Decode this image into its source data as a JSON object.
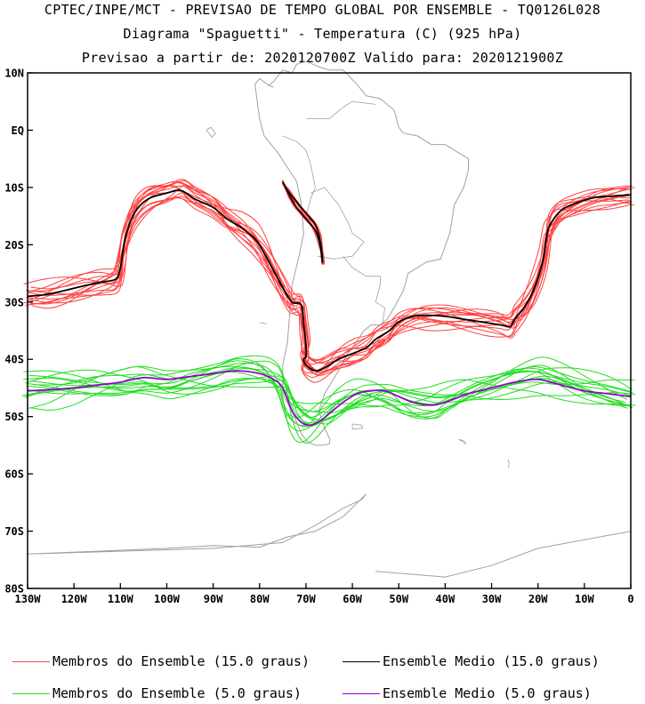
{
  "titles": {
    "line1": "CPTEC/INPE/MCT - PREVISAO DE TEMPO GLOBAL POR ENSEMBLE - TQ0126L028",
    "line2": "Diagrama \"Spaguetti\" - Temperatura (C) (925 hPa)",
    "line3": "Previsao a partir de: 2020120700Z  Valido para: 2020121900Z"
  },
  "colors": {
    "members_15": "#ff4040",
    "mean_15": "#000000",
    "members_5": "#22dd22",
    "mean_5": "#9900cc",
    "coast": "#a0a0a0"
  },
  "legend": [
    {
      "label": "Membros do Ensemble (15.0 graus)",
      "color": "#ff4040"
    },
    {
      "label": "Ensemble Medio (15.0 graus)",
      "color": "#000000"
    },
    {
      "label": "Membros do Ensemble (5.0 graus)",
      "color": "#22dd22"
    },
    {
      "label": "Ensemble Medio (5.0 graus)",
      "color": "#9900cc"
    }
  ],
  "chart_data": {
    "type": "line",
    "map_projection": "latitude-longitude",
    "xlim": [
      -130,
      0
    ],
    "ylim": [
      -80,
      10
    ],
    "x_ticks": [
      {
        "value": -130,
        "label": "130W"
      },
      {
        "value": -120,
        "label": "120W"
      },
      {
        "value": -110,
        "label": "110W"
      },
      {
        "value": -100,
        "label": "100W"
      },
      {
        "value": -90,
        "label": "90W"
      },
      {
        "value": -80,
        "label": "80W"
      },
      {
        "value": -70,
        "label": "70W"
      },
      {
        "value": -60,
        "label": "60W"
      },
      {
        "value": -50,
        "label": "50W"
      },
      {
        "value": -40,
        "label": "40W"
      },
      {
        "value": -30,
        "label": "30W"
      },
      {
        "value": -20,
        "label": "20W"
      },
      {
        "value": -10,
        "label": "10W"
      },
      {
        "value": 0,
        "label": "0"
      }
    ],
    "y_ticks": [
      {
        "value": 10,
        "label": "10N"
      },
      {
        "value": 0,
        "label": "EQ"
      },
      {
        "value": -10,
        "label": "10S"
      },
      {
        "value": -20,
        "label": "20S"
      },
      {
        "value": -30,
        "label": "30S"
      },
      {
        "value": -40,
        "label": "40S"
      },
      {
        "value": -50,
        "label": "50S"
      },
      {
        "value": -60,
        "label": "60S"
      },
      {
        "value": -70,
        "label": "70S"
      },
      {
        "value": -80,
        "label": "80S"
      }
    ],
    "series": [
      {
        "name": "Ensemble Medio (15.0 graus)",
        "color": "#000000",
        "x": [
          -130,
          -126,
          -122,
          -118,
          -114,
          -111,
          -110,
          -109,
          -107,
          -104,
          -100,
          -97,
          -94,
          -90,
          -87,
          -84,
          -81,
          -79,
          -77,
          -75,
          -73,
          -71,
          -70.5,
          -70,
          -70,
          -70.5,
          -70,
          -68,
          -66,
          -63,
          -60,
          -57,
          -55,
          -52,
          -50,
          -47,
          -44,
          -40,
          -36,
          -32,
          -28,
          -26,
          -25,
          -23,
          -21,
          -19,
          -18,
          -17,
          -15,
          -12,
          -8,
          -4,
          0
        ],
        "y": [
          -29,
          -28.7,
          -28,
          -27.2,
          -26.5,
          -26,
          -24,
          -19,
          -14.5,
          -12,
          -11,
          -10.5,
          -12,
          -13.5,
          -15.5,
          -17,
          -19,
          -21.5,
          -24.5,
          -27.5,
          -30,
          -30.5,
          -34,
          -37.5,
          -39.5,
          -40,
          -41,
          -42,
          -41.5,
          -40,
          -39,
          -38,
          -36.5,
          -35,
          -33.5,
          -32.5,
          -32.3,
          -32.5,
          -33,
          -33.5,
          -34,
          -34.3,
          -33,
          -31,
          -28,
          -23,
          -18,
          -16,
          -14,
          -12.8,
          -11.8,
          -11.5,
          -11.3
        ]
      },
      {
        "name": "Ensemble Medio (5.0 graus)",
        "color": "#9900cc",
        "x": [
          -130,
          -125,
          -120,
          -115,
          -110,
          -105,
          -100,
          -95,
          -90,
          -85,
          -80,
          -77,
          -75,
          -73,
          -71,
          -69,
          -67,
          -65,
          -62,
          -59,
          -56,
          -53,
          -50,
          -47,
          -43,
          -40,
          -35,
          -30,
          -25,
          -20,
          -15,
          -10,
          -5,
          0
        ],
        "y": [
          -45.5,
          -45.3,
          -45,
          -44.5,
          -44,
          -43.2,
          -43.5,
          -43,
          -42.5,
          -42,
          -42.5,
          -43.5,
          -45,
          -49,
          -51,
          -51.5,
          -50.8,
          -49.5,
          -47.5,
          -46,
          -45.5,
          -45.5,
          -46.5,
          -47.5,
          -48,
          -47.5,
          -46,
          -45,
          -44,
          -43.5,
          -44.5,
          -45.5,
          -46,
          -46.5
        ]
      },
      {
        "name": "Membros do Ensemble (15.0 graus)",
        "color": "#ff4040",
        "count": 14
      },
      {
        "name": "Membros do Ensemble (5.0 graus)",
        "color": "#22dd22",
        "count": 14
      }
    ],
    "andes_isotherm": {
      "x": [
        -75,
        -74,
        -72,
        -70,
        -68,
        -67,
        -66.5,
        -66.5,
        -67,
        -68,
        -70,
        -72,
        -73.5,
        -75
      ],
      "y": [
        -9,
        -10.5,
        -12.5,
        -14.5,
        -16.5,
        -19,
        -22,
        -23,
        -20,
        -17.5,
        -15.5,
        -13.5,
        -11.5,
        -9
      ]
    },
    "coastlines": [
      {
        "x": [
          -77,
          -78,
          -80,
          -81,
          -80,
          -79,
          -76,
          -72,
          -71,
          -70.5,
          -71.5,
          -73,
          -73.5,
          -74,
          -75,
          -75,
          -72.5,
          -71,
          -69.5,
          -68,
          -66.5,
          -65,
          -64.8,
          -66,
          -67.2,
          -66,
          -63,
          -61,
          -60,
          -57.5,
          -56,
          -54,
          -52.5,
          -51,
          -49,
          -48,
          -44,
          -41,
          -39,
          -38,
          -36,
          -35,
          -35,
          -37,
          -40,
          -43,
          -46,
          -49,
          -50,
          -51,
          -54,
          -57,
          -59,
          -62,
          -65,
          -67,
          -70,
          -72,
          -73,
          -75,
          -77,
          -78,
          -77
        ],
        "y": [
          7.5,
          7.8,
          9,
          8,
          2,
          -1,
          -4,
          -9,
          -13,
          -18,
          -22,
          -27,
          -32,
          -37,
          -41,
          -46,
          -50,
          -53,
          -54.5,
          -55,
          -55,
          -54.8,
          -54,
          -52,
          -49,
          -46,
          -42,
          -39,
          -38,
          -35,
          -34,
          -34,
          -33,
          -31,
          -28,
          -25,
          -23,
          -22.5,
          -18,
          -13,
          -10,
          -7,
          -5,
          -4,
          -2.5,
          -2.5,
          -1,
          -0.5,
          0.5,
          3.5,
          5.5,
          6,
          8,
          10.5,
          10.5,
          11,
          12,
          11.5,
          10,
          10.5,
          8.5,
          7.8,
          7.5
        ]
      },
      {
        "x": [
          -130,
          -100,
          -90,
          -80,
          -74,
          -68,
          -62,
          -57,
          -58,
          -62,
          -68,
          -75,
          -90,
          -110,
          -130
        ],
        "y": [
          -74,
          -73,
          -72.5,
          -72.8,
          -71,
          -70,
          -67.5,
          -63.5,
          -64.5,
          -66,
          -69,
          -72,
          -73,
          -73.5,
          -74
        ]
      },
      {
        "x": [
          -55,
          -40,
          -30,
          -20,
          -10,
          0
        ],
        "y": [
          -77,
          -78,
          -76,
          -73,
          -71.5,
          -70
        ]
      }
    ],
    "borders": [
      {
        "x": [
          -75,
          -72,
          -70,
          -69,
          -68,
          -69,
          -70
        ],
        "y": [
          -1,
          -2,
          -3.5,
          -6,
          -10,
          -12,
          -15
        ]
      },
      {
        "x": [
          -69,
          -66,
          -63,
          -61,
          -60,
          -57.5
        ],
        "y": [
          -11,
          -10,
          -13,
          -16,
          -18,
          -19.5
        ]
      },
      {
        "x": [
          -67.5,
          -64,
          -60,
          -58,
          -57.5
        ],
        "y": [
          -22,
          -22.5,
          -22,
          -20,
          -19.5
        ]
      },
      {
        "x": [
          -62,
          -60,
          -57,
          -54,
          -54,
          -55
        ],
        "y": [
          -22,
          -24,
          -25.5,
          -25.5,
          -27,
          -30
        ]
      },
      {
        "x": [
          -55,
          -53,
          -53.5
        ],
        "y": [
          -30,
          -31,
          -33.7
        ]
      },
      {
        "x": [
          -70,
          -65,
          -62,
          -60,
          -55
        ],
        "y": [
          2,
          2,
          4,
          5,
          4.5
        ]
      }
    ],
    "islands": [
      {
        "x": [
          -91.5,
          -90.5,
          -89.5,
          -90.2,
          -91.5
        ],
        "y": [
          0,
          0.5,
          -0.5,
          -1.2,
          0
        ]
      },
      {
        "x": [
          -60,
          -58,
          -57.8,
          -60,
          -60
        ],
        "y": [
          -51.3,
          -51.5,
          -52,
          -52.2,
          -51.3
        ]
      },
      {
        "x": [
          -37,
          -36,
          -35.5,
          -37
        ],
        "y": [
          -54,
          -54.2,
          -54.8,
          -54
        ]
      },
      {
        "x": [
          -26.5,
          -26.2,
          -26.4
        ],
        "y": [
          -57.5,
          -58.2,
          -59
        ]
      },
      {
        "x": [
          -80,
          -78.5
        ],
        "y": [
          -33.6,
          -33.8
        ]
      }
    ]
  }
}
